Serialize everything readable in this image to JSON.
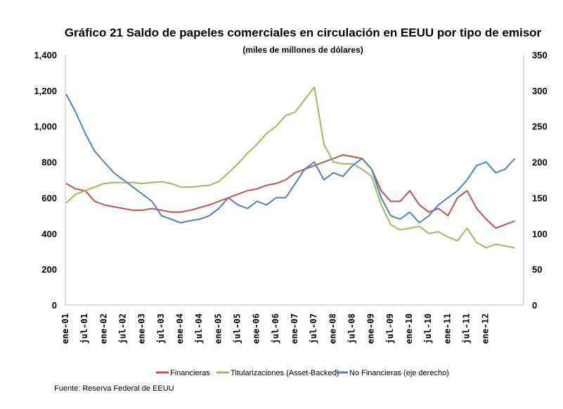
{
  "chart_data": {
    "type": "line",
    "title": "Gráfico 21  Saldo de papeles comerciales en circulación en EEUU por tipo de emisor",
    "subtitle": "(miles de millones de dólares)",
    "source": "Fuente: Reserva Federal de EEUU",
    "y_left": {
      "ticks": [
        "0",
        "200",
        "400",
        "600",
        "800",
        "1,000",
        "1,200",
        "1,400"
      ],
      "ylim": [
        0,
        1400
      ]
    },
    "y_right": {
      "ticks": [
        "0",
        "50",
        "100",
        "150",
        "200",
        "250",
        "300",
        "350"
      ],
      "ylim": [
        0,
        350
      ]
    },
    "x_tick_labels": [
      "ene-01",
      "jul-01",
      "ene-02",
      "jul-02",
      "ene-03",
      "jul-03",
      "ene-04",
      "jul-04",
      "ene-05",
      "jul-05",
      "ene-06",
      "jul-06",
      "ene-07",
      "jul-07",
      "ene-08",
      "jul-08",
      "ene-09",
      "jul-09",
      "ene-10",
      "jul-10",
      "ene-11",
      "jul-11",
      "ene-12"
    ],
    "x_frequency": "quarterly from ene-01 to oct-12",
    "grid": false,
    "legend_position": "bottom",
    "series": [
      {
        "name": "Financieras",
        "axis": "left",
        "color": "#c0504d",
        "values": [
          680,
          650,
          640,
          580,
          560,
          550,
          540,
          530,
          530,
          540,
          530,
          520,
          520,
          530,
          545,
          560,
          580,
          600,
          620,
          640,
          650,
          670,
          680,
          700,
          740,
          760,
          780,
          800,
          820,
          840,
          830,
          820,
          760,
          640,
          580,
          580,
          640,
          560,
          520,
          540,
          500,
          600,
          640,
          540,
          480,
          430,
          450,
          470
        ]
      },
      {
        "name": "Titularizaciones (Asset-Backed)",
        "axis": "left",
        "color": "#9bbb59",
        "values": [
          570,
          620,
          640,
          660,
          680,
          685,
          685,
          685,
          680,
          685,
          690,
          680,
          660,
          660,
          665,
          670,
          690,
          740,
          790,
          850,
          900,
          960,
          1000,
          1060,
          1080,
          1150,
          1220,
          900,
          800,
          790,
          790,
          760,
          720,
          560,
          450,
          420,
          430,
          440,
          400,
          410,
          380,
          360,
          430,
          350,
          320,
          340,
          330,
          320
        ]
      },
      {
        "name": "No Financieras (eje derecho)",
        "axis": "right",
        "color": "#4f81bd",
        "values": [
          295,
          270,
          240,
          215,
          200,
          185,
          175,
          165,
          155,
          145,
          125,
          120,
          115,
          118,
          120,
          125,
          135,
          150,
          140,
          135,
          145,
          140,
          150,
          150,
          170,
          190,
          200,
          175,
          185,
          180,
          195,
          205,
          190,
          150,
          125,
          120,
          130,
          115,
          125,
          140,
          150,
          160,
          175,
          195,
          200,
          185,
          190,
          205
        ]
      }
    ]
  }
}
